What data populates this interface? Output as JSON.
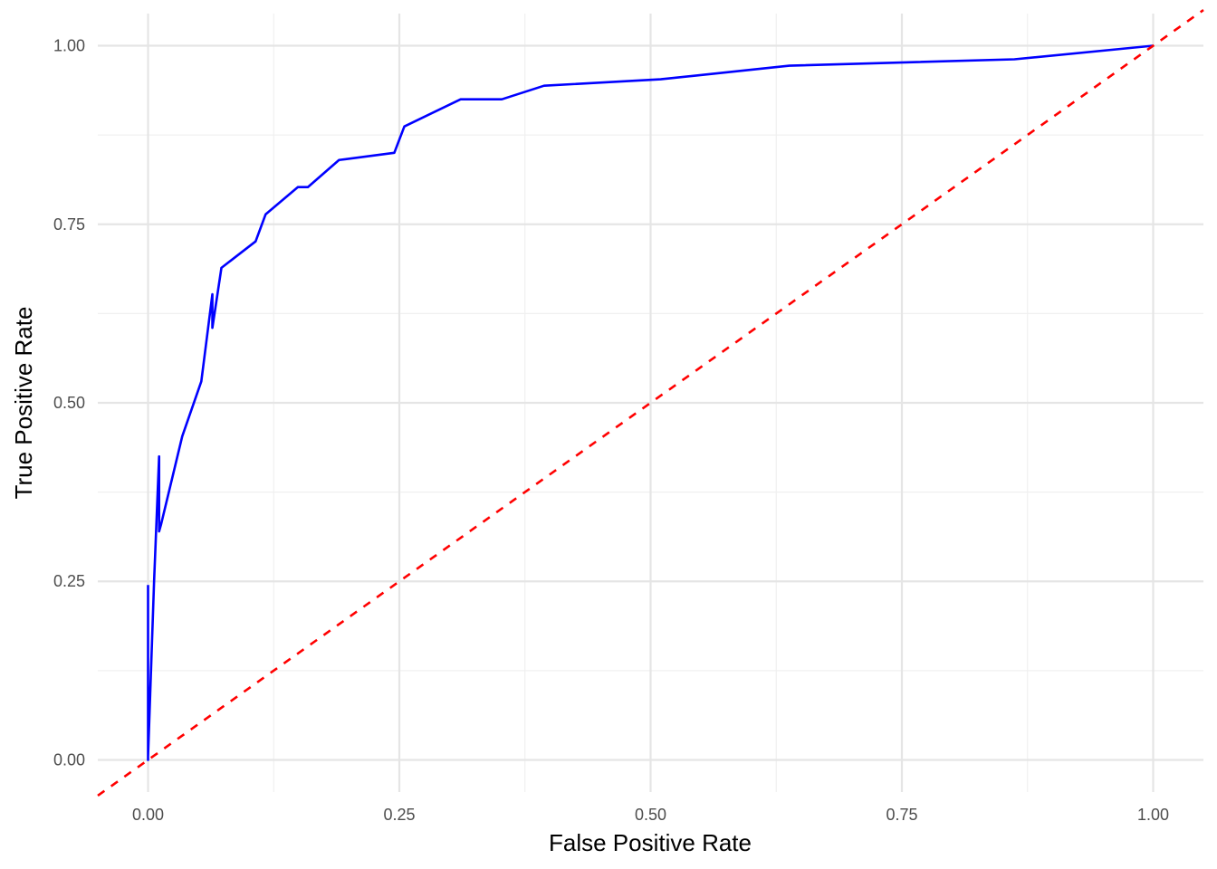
{
  "chart_data": {
    "type": "line",
    "title": "",
    "xlabel": "False Positive Rate",
    "ylabel": "True Positive Rate",
    "xlim": [
      -0.05,
      1.05
    ],
    "ylim": [
      -0.045,
      1.045
    ],
    "x_ticks": [
      0,
      0.25,
      0.5,
      0.75,
      1
    ],
    "x_tick_labels": [
      "0.00",
      "0.25",
      "0.50",
      "0.75",
      "1.00"
    ],
    "y_ticks": [
      0,
      0.25,
      0.5,
      0.75,
      1
    ],
    "y_tick_labels": [
      "0.00",
      "0.25",
      "0.50",
      "0.75",
      "1.00"
    ],
    "grid": true,
    "legend": "none",
    "series": [
      {
        "color": "#0000ff",
        "line_style": "solid",
        "x": [
          0,
          0,
          0,
          0.006,
          0.011,
          0.011,
          0.013,
          0.034,
          0.053,
          0.064,
          0.064,
          0.073,
          0.107,
          0.117,
          0.149,
          0.159,
          0.19,
          0.245,
          0.255,
          0.311,
          0.352,
          0.394,
          0.51,
          0.638,
          0.862,
          1
        ],
        "y": [
          0.245,
          0,
          0.005,
          0.25,
          0.425,
          0.32,
          0.33,
          0.453,
          0.53,
          0.652,
          0.605,
          0.689,
          0.726,
          0.764,
          0.802,
          0.802,
          0.84,
          0.85,
          0.887,
          0.925,
          0.925,
          0.944,
          0.953,
          0.972,
          0.981,
          1
        ]
      },
      {
        "color": "#ff0000",
        "line_style": "dashed",
        "x": [
          -0.05,
          1.05
        ],
        "y": [
          -0.05,
          1.05
        ]
      }
    ]
  }
}
